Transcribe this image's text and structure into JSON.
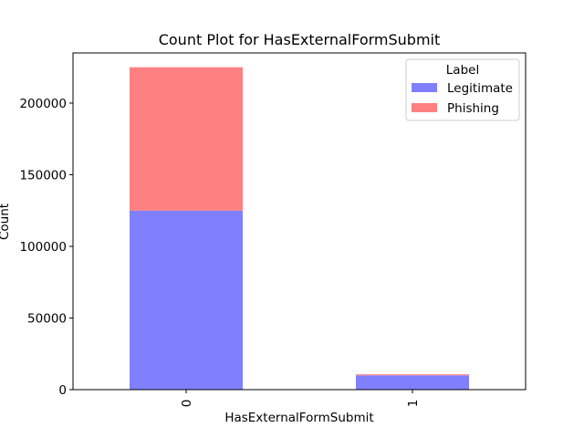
{
  "chart_data": {
    "type": "bar",
    "stacked": true,
    "title": "Count Plot for HasExternalFormSubmit",
    "xlabel": "HasExternalFormSubmit",
    "ylabel": "Count",
    "categories": [
      "0",
      "1"
    ],
    "ylim": [
      0,
      235000
    ],
    "yticks": [
      0,
      50000,
      100000,
      150000,
      200000
    ],
    "legend": {
      "title": "Label",
      "placement": "top-right"
    },
    "series": [
      {
        "name": "Legitimate",
        "color": "#8080ff",
        "values": [
          125000,
          10000
        ]
      },
      {
        "name": "Phishing",
        "color": "#ff8080",
        "values": [
          100000,
          700
        ]
      }
    ]
  }
}
